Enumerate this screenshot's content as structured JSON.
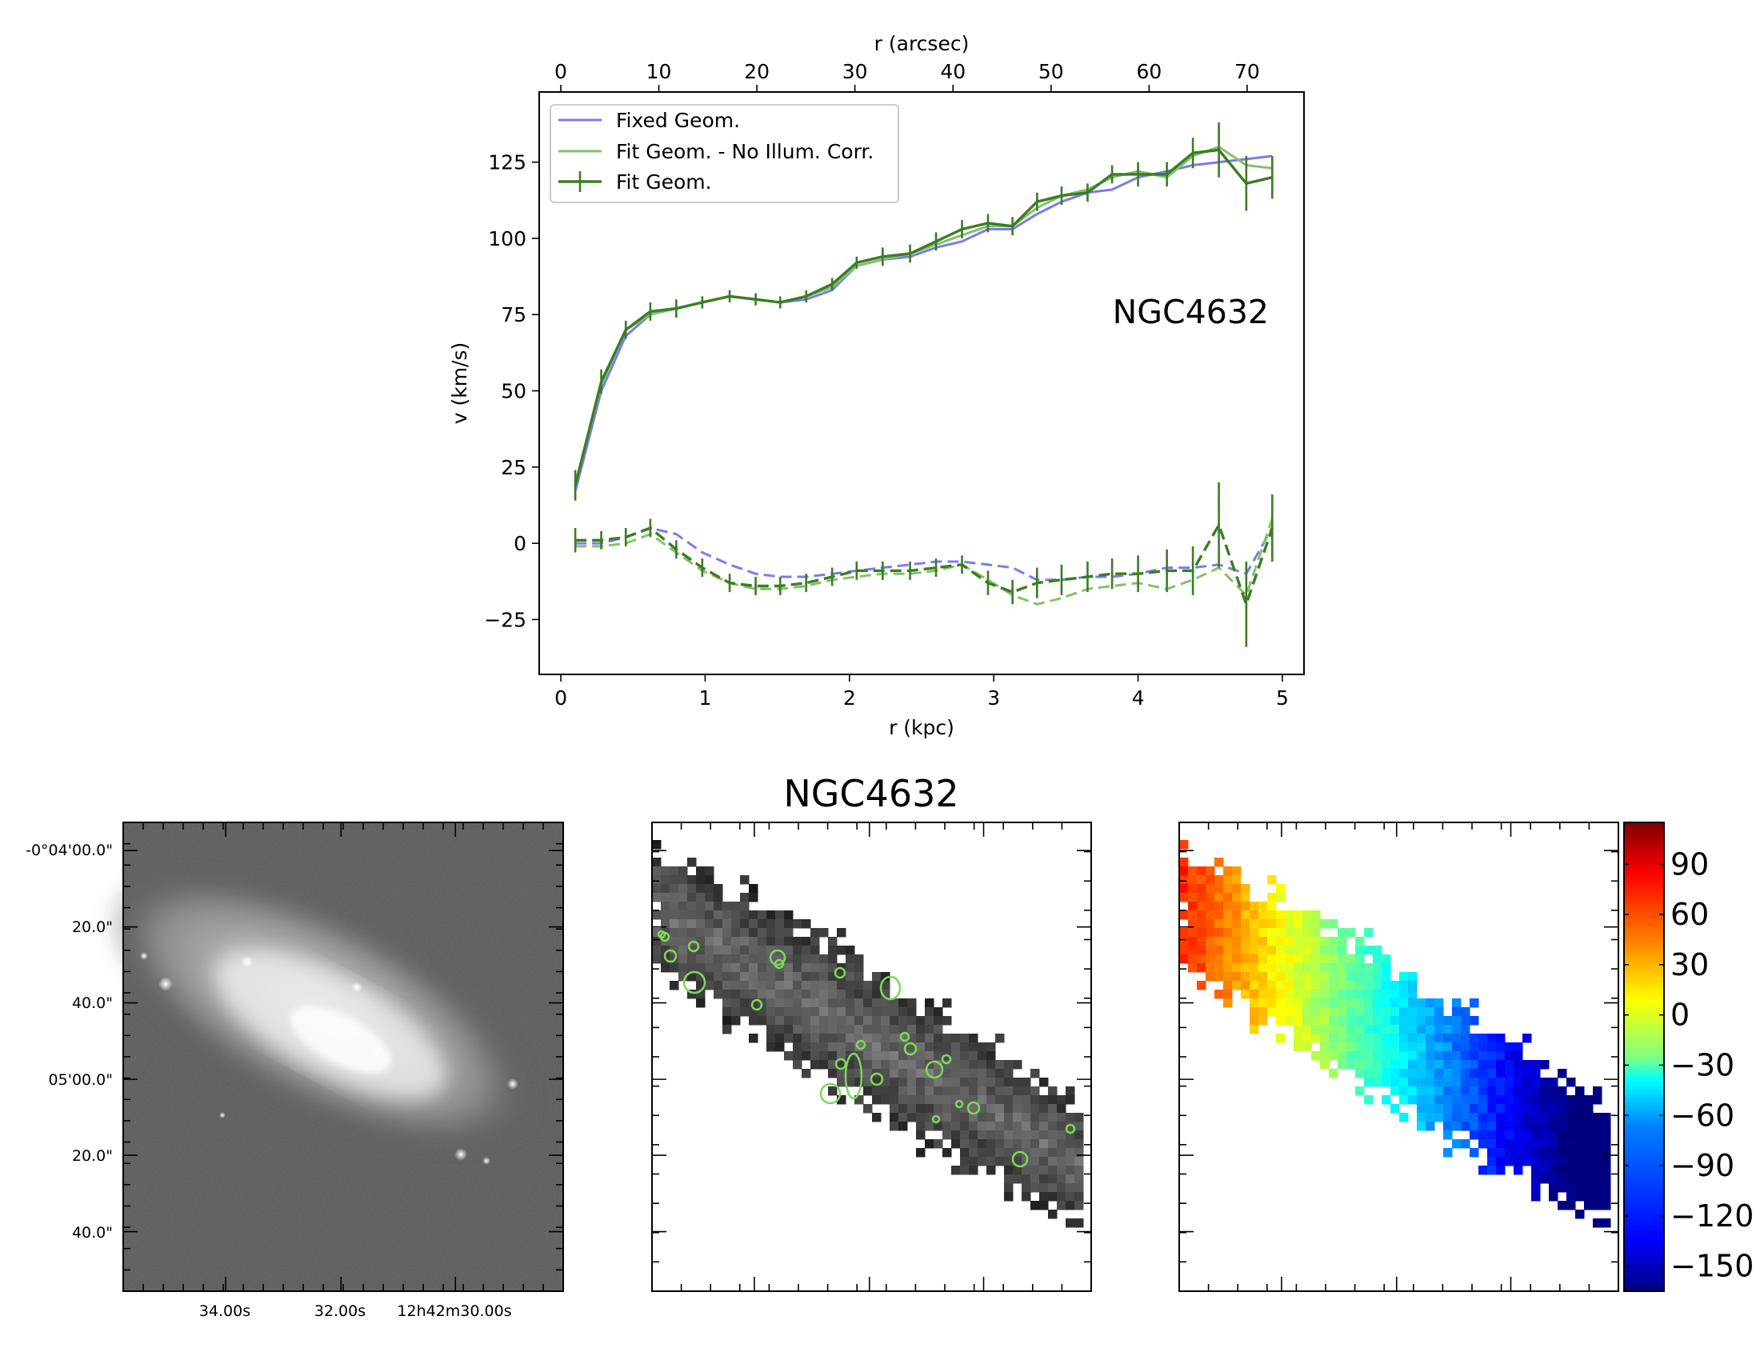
{
  "chart_data": [
    {
      "type": "line",
      "title": "NGC4632",
      "xlabel": "r (kpc)",
      "ylabel": "v (km/s)",
      "top_xlabel": "r (arcsec)",
      "xlim": [
        -0.15,
        5.15
      ],
      "ylim": [
        -43,
        148
      ],
      "top_xlim": [
        -2.2,
        75.8
      ],
      "xticks": [
        0,
        1,
        2,
        3,
        4,
        5
      ],
      "yticks": [
        -25,
        0,
        25,
        50,
        75,
        100,
        125
      ],
      "top_xticks": [
        0,
        10,
        20,
        30,
        40,
        50,
        60,
        70
      ],
      "legend_position": "upper-left",
      "legend": [
        "Fixed Geom.",
        "Fit Geom. - No Illum. Corr.",
        "Fit Geom."
      ],
      "r_kpc": [
        0.1,
        0.28,
        0.45,
        0.62,
        0.8,
        0.98,
        1.17,
        1.35,
        1.52,
        1.7,
        1.88,
        2.05,
        2.23,
        2.42,
        2.6,
        2.78,
        2.96,
        3.13,
        3.3,
        3.47,
        3.65,
        3.82,
        4.0,
        4.2,
        4.38,
        4.56,
        4.75,
        4.93
      ],
      "series": [
        {
          "name": "Fixed Geom.",
          "kind": "rotation",
          "color": "#7b7bf0",
          "values": [
            17,
            50,
            68,
            75,
            77,
            79,
            81,
            80,
            79,
            80,
            83,
            91,
            93,
            94,
            97,
            99,
            103,
            103,
            108,
            112,
            115,
            116,
            120,
            122,
            124,
            125,
            126,
            127
          ]
        },
        {
          "name": "Fit Geom. - No Illum. Corr.",
          "kind": "rotation",
          "color": "#86c06c",
          "values": [
            19,
            52,
            70,
            75,
            77,
            79,
            81,
            80,
            79,
            81,
            84,
            91,
            93,
            95,
            98,
            101,
            104,
            104,
            110,
            114,
            116,
            120,
            122,
            120,
            127,
            130,
            124,
            123
          ]
        },
        {
          "name": "Fit Geom.",
          "kind": "rotation",
          "color": "#3a7d22",
          "values": [
            19,
            53,
            70,
            76,
            77,
            79,
            81,
            80,
            79,
            81,
            85,
            92,
            94,
            95,
            99,
            103,
            105,
            104,
            112,
            114,
            115,
            121,
            121,
            121,
            128,
            129,
            118,
            120
          ],
          "errors": [
            5,
            4,
            3,
            3,
            3,
            2,
            2,
            2,
            2,
            2,
            2,
            2,
            3,
            3,
            3,
            3,
            3,
            3,
            3,
            3,
            3,
            3,
            4,
            4,
            5,
            9,
            9,
            7
          ]
        },
        {
          "name": "Fixed Geom.",
          "kind": "radial",
          "color": "#7b7bf0",
          "values": [
            0,
            0,
            2,
            5,
            3,
            -3,
            -7,
            -10,
            -11,
            -11,
            -10,
            -9,
            -8,
            -7,
            -6,
            -6,
            -7,
            -8,
            -12,
            -12,
            -11,
            -11,
            -10,
            -8,
            -8,
            -7,
            -10,
            5
          ]
        },
        {
          "name": "Fit Geom. - No Illum. Corr.",
          "kind": "radial",
          "color": "#86c06c",
          "values": [
            -1,
            -1,
            0,
            3,
            -3,
            -9,
            -13,
            -15,
            -15,
            -14,
            -12,
            -11,
            -10,
            -10,
            -9,
            -7,
            -12,
            -17,
            -20,
            -18,
            -15,
            -14,
            -13,
            -15,
            -12,
            -8,
            -17,
            8
          ]
        },
        {
          "name": "Fit Geom.",
          "kind": "radial",
          "color": "#3a7d22",
          "values": [
            1,
            1,
            2,
            5,
            -2,
            -8,
            -13,
            -14,
            -14,
            -13,
            -11,
            -9,
            -9,
            -9,
            -8,
            -7,
            -13,
            -16,
            -13,
            -12,
            -11,
            -10,
            -10,
            -9,
            -9,
            6,
            -20,
            5
          ],
          "errors": [
            4,
            3,
            3,
            3,
            3,
            3,
            3,
            3,
            3,
            3,
            3,
            3,
            3,
            3,
            3,
            3,
            4,
            4,
            5,
            5,
            5,
            5,
            6,
            7,
            8,
            14,
            14,
            11
          ]
        }
      ],
      "annotation": "NGC4632"
    },
    {
      "type": "heatmap",
      "title": "NGC4632",
      "panels": [
        "optical image",
        "emission-line map",
        "velocity map"
      ],
      "ra_ticks": [
        "34.00s",
        "32.00s",
        "12h42m30.00s"
      ],
      "dec_ticks": [
        "-0°04'00.0\"",
        "20.0\"",
        "40.0\"",
        "05'00.0\"",
        "20.0\"",
        "40.0\""
      ],
      "colorbar": {
        "ticks": [
          "90",
          "60",
          "30",
          "0",
          "−30",
          "−60",
          "−90",
          "−120",
          "−150"
        ],
        "tick_values": [
          90,
          60,
          30,
          0,
          -30,
          -60,
          -90,
          -120,
          -150
        ],
        "range": [
          -165,
          115
        ],
        "colormap": [
          "#00007f",
          "#0000ff",
          "#007fff",
          "#00ffff",
          "#7fff7f",
          "#ffff00",
          "#ff7f00",
          "#ff0000",
          "#7f0000"
        ]
      }
    }
  ],
  "colors": {
    "fixed": "#7b7bf0",
    "no_illum": "#86c06c",
    "fit": "#3a7d22",
    "contour": "#7ed957"
  }
}
